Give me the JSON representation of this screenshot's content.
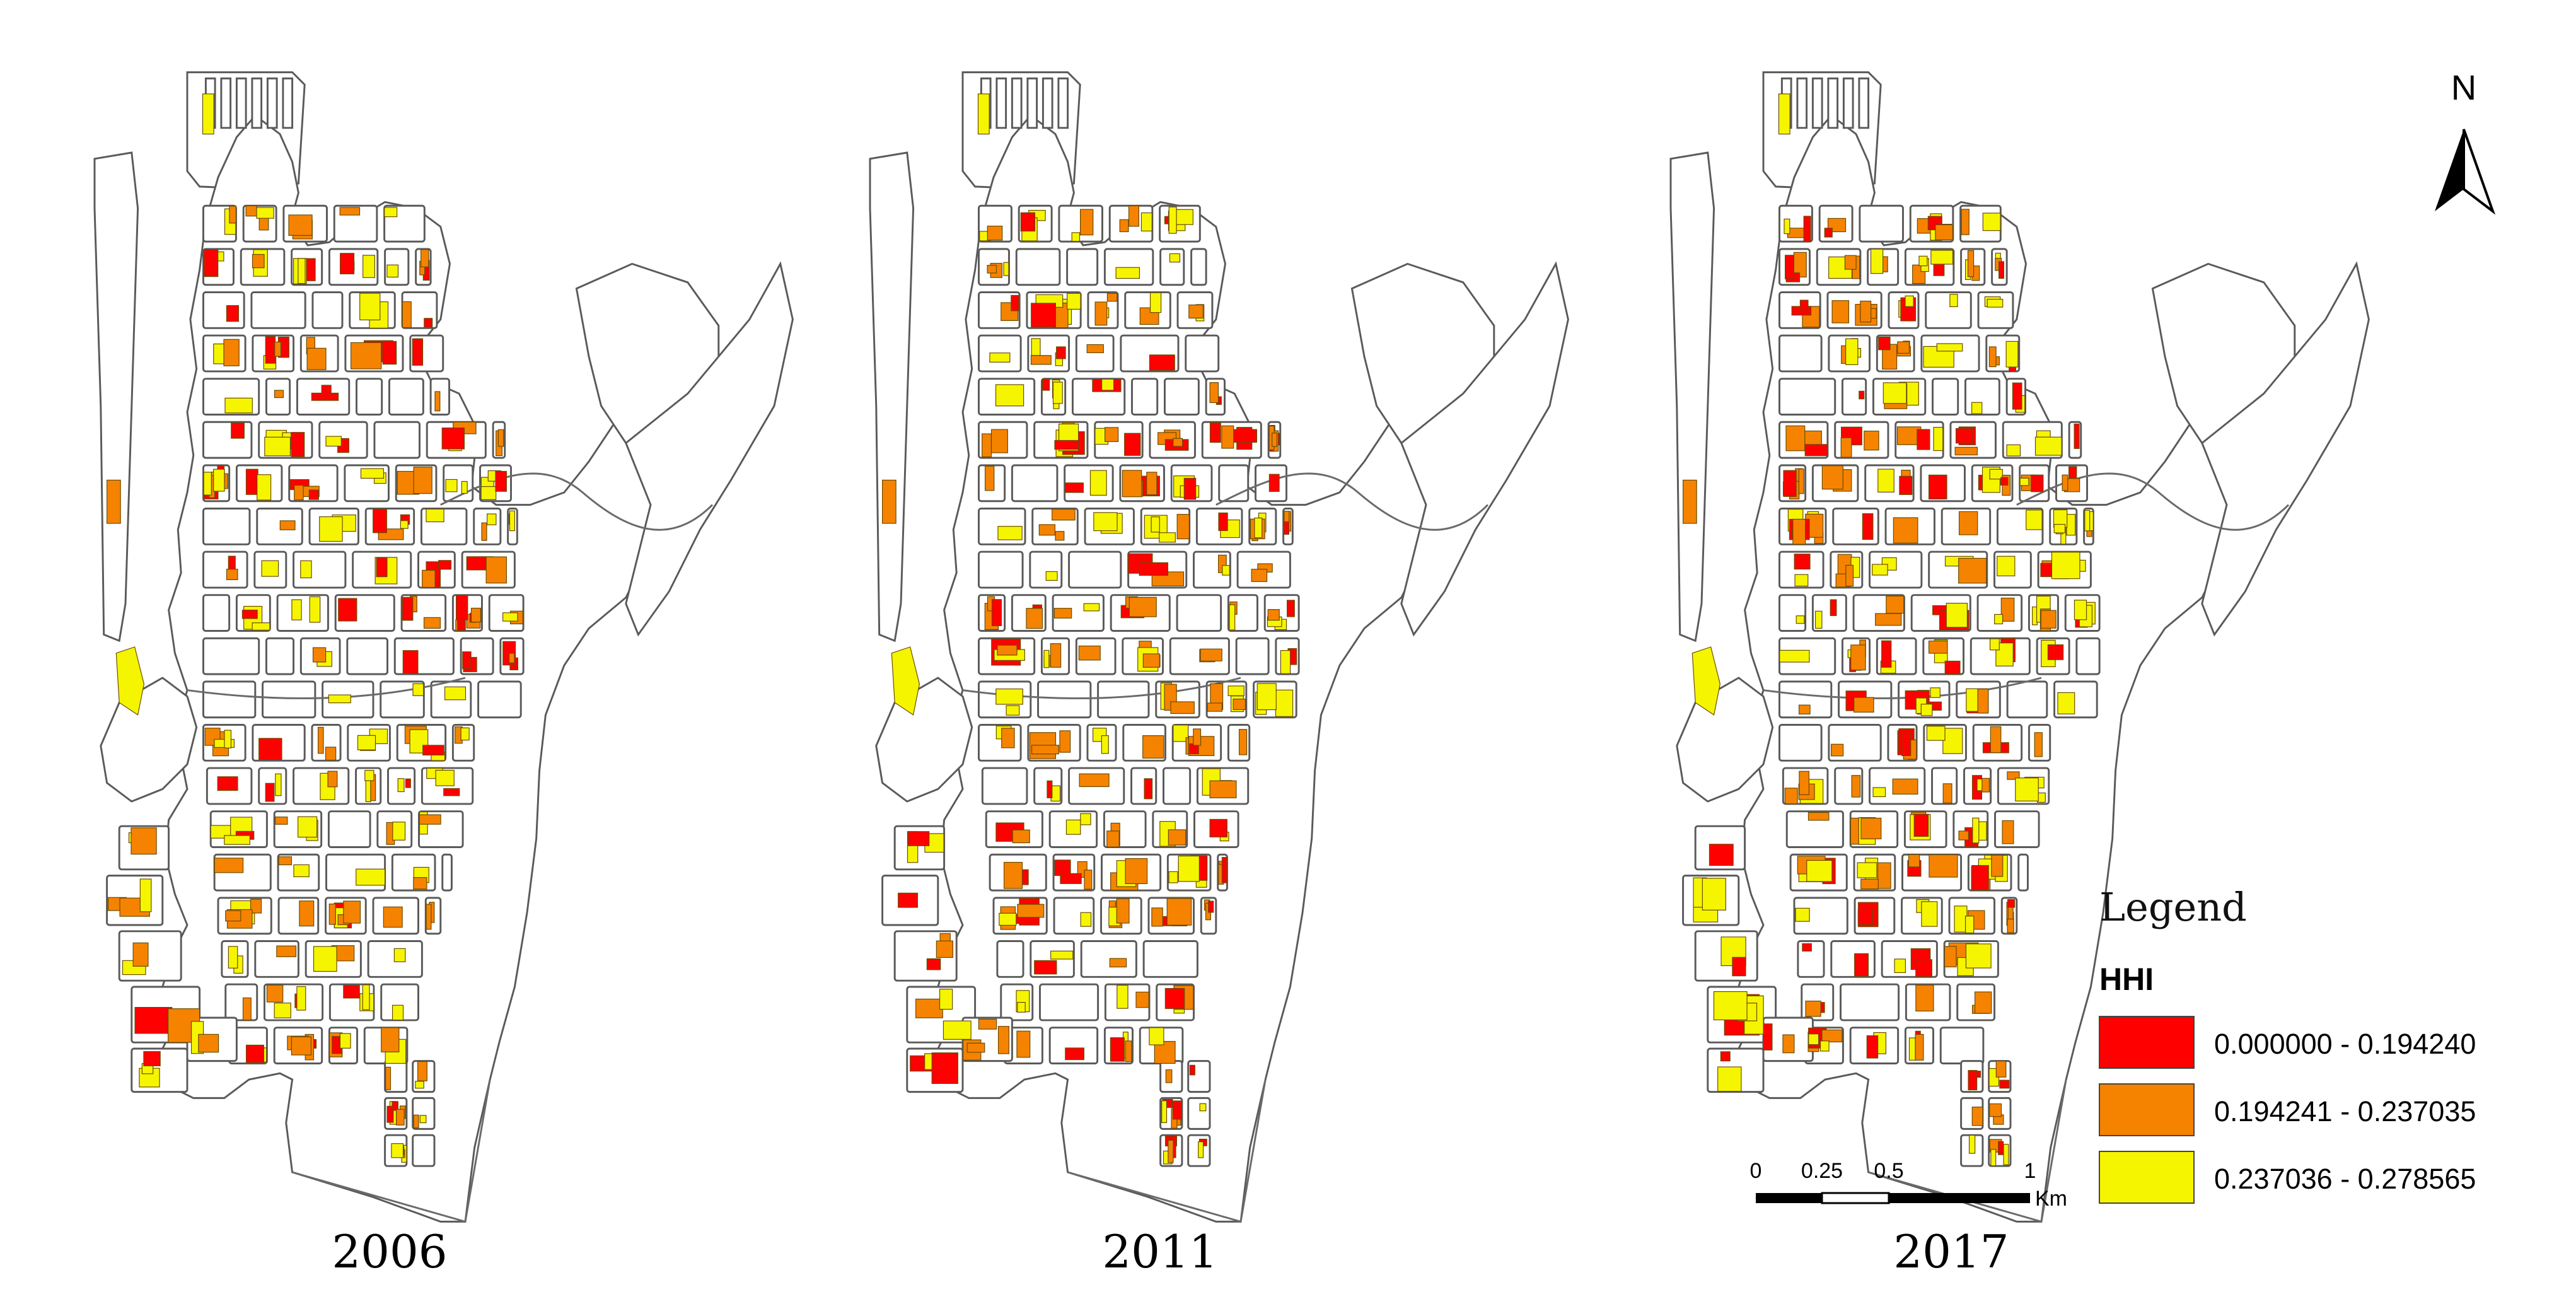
{
  "maps": [
    {
      "year_label": "2006"
    },
    {
      "year_label": "2011"
    },
    {
      "year_label": "2017"
    }
  ],
  "legend": {
    "title": "Legend",
    "field": "HHI",
    "classes": [
      {
        "label": "0.000000 - 0.194240",
        "color": "#ff0000"
      },
      {
        "label": "0.194241 - 0.237035",
        "color": "#f58300"
      },
      {
        "label": "0.237036 - 0.278565",
        "color": "#f5f500"
      }
    ]
  },
  "scale_bar": {
    "ticks": [
      "0",
      "0.25",
      "0.5",
      "1"
    ],
    "unit": "Km"
  },
  "north_arrow": {
    "label": "N"
  }
}
